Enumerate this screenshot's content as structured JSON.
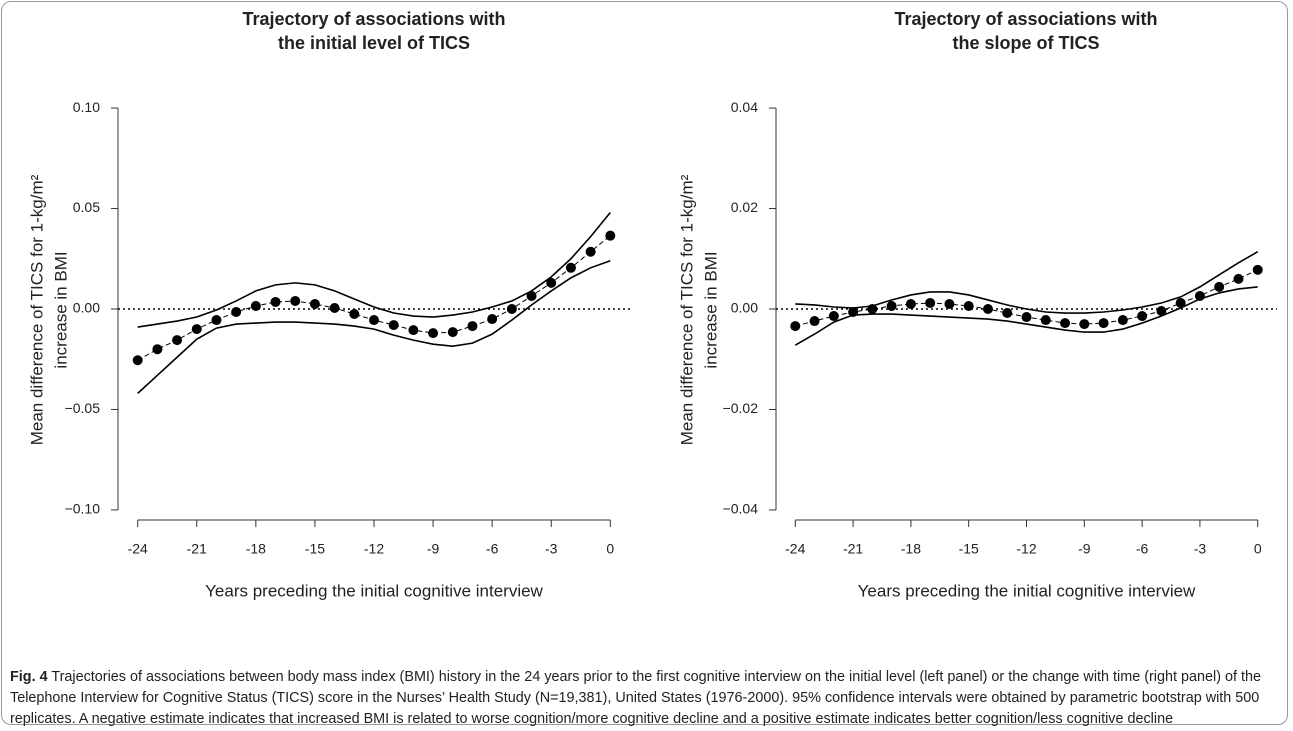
{
  "chart_data": [
    {
      "type": "line",
      "title": [
        "Trajectory of associations with",
        "the initial level of TICS"
      ],
      "y_label": [
        "Mean difference of TICS for 1-kg/m²",
        "increase in BMI"
      ],
      "x_label": "Years preceding the initial cognitive interview",
      "x": [
        -24,
        -23,
        -22,
        -21,
        -20,
        -19,
        -18,
        -17,
        -16,
        -15,
        -14,
        -13,
        -12,
        -11,
        -10,
        -9,
        -8,
        -7,
        -6,
        -5,
        -4,
        -3,
        -2,
        -1,
        0
      ],
      "series": [
        {
          "color": "#000000",
          "style": "dashed-dots",
          "values": [
            -0.0255,
            -0.02,
            -0.0155,
            -0.01,
            -0.0055,
            -0.0015,
            0.0015,
            0.0035,
            0.004,
            0.0025,
            0.0005,
            -0.0025,
            -0.0055,
            -0.008,
            -0.0105,
            -0.012,
            -0.0115,
            -0.0085,
            -0.005,
            0,
            0.0065,
            0.013,
            0.0205,
            0.0285,
            0.0365
          ]
        },
        {
          "color": "#000000",
          "style": "solid",
          "values": [
            -0.009,
            -0.0075,
            -0.006,
            -0.004,
            -0.0005,
            0.004,
            0.009,
            0.012,
            0.013,
            0.012,
            0.009,
            0.005,
            0.001,
            -0.002,
            -0.0035,
            -0.004,
            -0.003,
            -0.0015,
            0.001,
            0.004,
            0.009,
            0.016,
            0.025,
            0.036,
            0.048
          ]
        },
        {
          "color": "#000000",
          "style": "solid",
          "values": [
            -0.042,
            -0.033,
            -0.024,
            -0.015,
            -0.0095,
            -0.0075,
            -0.007,
            -0.0065,
            -0.0065,
            -0.007,
            -0.0075,
            -0.0085,
            -0.01,
            -0.013,
            -0.0155,
            -0.0175,
            -0.0185,
            -0.017,
            -0.0125,
            -0.0055,
            0.002,
            0.009,
            0.0155,
            0.0205,
            0.024
          ]
        }
      ],
      "hline": 0,
      "xlim": [
        -25,
        1
      ],
      "xticks": [
        -24,
        -21,
        -18,
        -15,
        -12,
        -9,
        -6,
        -3,
        0
      ],
      "ylim": [
        -0.105,
        0.105
      ],
      "yticks": [
        {
          "value": -0.1,
          "label": "−0.10"
        },
        {
          "value": -0.05,
          "label": "−0.05"
        },
        {
          "value": 0,
          "label": "0.00"
        },
        0.05,
        {
          "value": 0.1,
          "label": "0.10"
        }
      ]
    },
    {
      "type": "line",
      "title": [
        "Trajectory of associations with",
        "the slope of TICS"
      ],
      "y_label": [
        "Mean difference of TICS for 1-kg/m²",
        "increase in BMI"
      ],
      "x_label": "Years preceding the initial cognitive interview",
      "x": [
        -24,
        -23,
        -22,
        -21,
        -20,
        -19,
        -18,
        -17,
        -16,
        -15,
        -14,
        -13,
        -12,
        -11,
        -10,
        -9,
        -8,
        -7,
        -6,
        -5,
        -4,
        -3,
        -2,
        -1,
        0
      ],
      "series": [
        {
          "color": "#000000",
          "style": "dashed-dots",
          "values": [
            -0.0034,
            -0.0024,
            -0.0014,
            -0.0006,
            0,
            0.0006,
            0.001,
            0.0012,
            0.001,
            0.0006,
            0,
            -0.0008,
            -0.0016,
            -0.0022,
            -0.0028,
            -0.003,
            -0.0028,
            -0.0022,
            -0.0014,
            -0.0004,
            0.0012,
            0.0026,
            0.0044,
            0.006,
            0.0078
          ]
        },
        {
          "color": "#000000",
          "style": "solid",
          "values": [
            0.001,
            0.0008,
            0.0004,
            0.0002,
            0.0006,
            0.0018,
            0.0028,
            0.0034,
            0.0034,
            0.0028,
            0.0018,
            0.0008,
            0,
            -0.0006,
            -0.0008,
            -0.0008,
            -0.0006,
            -0.0002,
            0.0004,
            0.0012,
            0.0024,
            0.0044,
            0.0068,
            0.0092,
            0.0114
          ]
        },
        {
          "color": "#000000",
          "style": "solid",
          "values": [
            -0.0072,
            -0.005,
            -0.0026,
            -0.0012,
            -0.001,
            -0.001,
            -0.0012,
            -0.0014,
            -0.0016,
            -0.0018,
            -0.002,
            -0.0024,
            -0.003,
            -0.0036,
            -0.0042,
            -0.0046,
            -0.0046,
            -0.004,
            -0.0028,
            -0.0014,
            0.0002,
            0.002,
            0.0032,
            0.004,
            0.0044
          ]
        }
      ],
      "hline": 0,
      "xlim": [
        -25,
        1
      ],
      "xticks": [
        -24,
        -21,
        -18,
        -15,
        -12,
        -9,
        -6,
        -3,
        0
      ],
      "ylim": [
        -0.042,
        0.042
      ],
      "yticks": [
        {
          "value": -0.04,
          "label": "−0.04"
        },
        {
          "value": -0.02,
          "label": "−0.02"
        },
        {
          "value": 0,
          "label": "0.00"
        },
        0.02,
        0.04
      ]
    }
  ],
  "caption": {
    "label": "Fig. 4",
    "text": "Trajectories of associations between body mass index (BMI) history in the 24 years prior to the first cognitive interview on the initial level (left panel) or the change with time (right panel) of the Telephone Interview for Cognitive Status (TICS) score in the Nurses’ Health Study (N=19,381), United States (1976-2000). 95% confidence intervals were obtained by parametric bootstrap with 500 replicates. A negative estimate indicates that increased BMI is related to worse cognition/more cognitive decline and a positive estimate indicates better cognition/less cognitive decline"
  }
}
